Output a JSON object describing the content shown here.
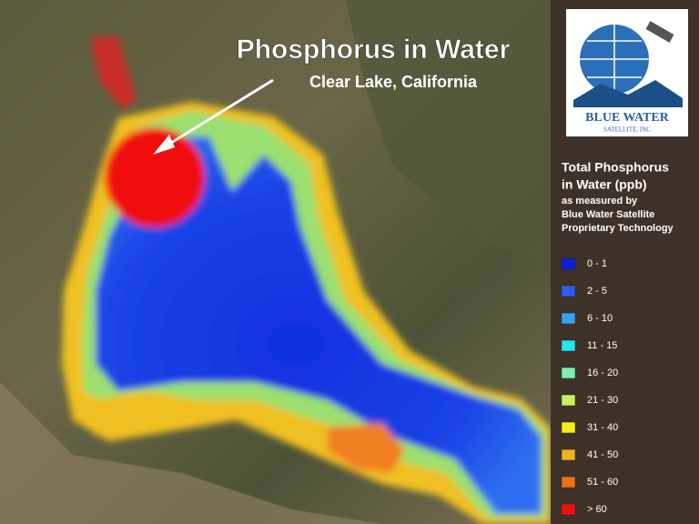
{
  "title": "Phosphorus in Water",
  "subtitle": "Clear Lake, California",
  "logo": {
    "name": "BLUE WATER",
    "tagline": "SATELLITE, INC"
  },
  "legend": {
    "title_lines": [
      "Total Phosphorus",
      "in Water (ppb)",
      "as measured by",
      "Blue Water Satellite",
      "Proprietary Technology"
    ],
    "items": [
      {
        "label": "0 - 1",
        "color": "#0a1fd8"
      },
      {
        "label": "2 - 5",
        "color": "#2f5cf0"
      },
      {
        "label": "6 - 10",
        "color": "#3aa0f0"
      },
      {
        "label": "11 - 15",
        "color": "#22e6f0"
      },
      {
        "label": "16 - 20",
        "color": "#7df0b0"
      },
      {
        "label": "21 - 30",
        "color": "#c8f060"
      },
      {
        "label": "31 - 40",
        "color": "#f5f010"
      },
      {
        "label": "41 - 50",
        "color": "#f0b020"
      },
      {
        "label": "51 - 60",
        "color": "#f07010"
      },
      {
        "label": "> 60",
        "color": "#f01010"
      }
    ]
  }
}
